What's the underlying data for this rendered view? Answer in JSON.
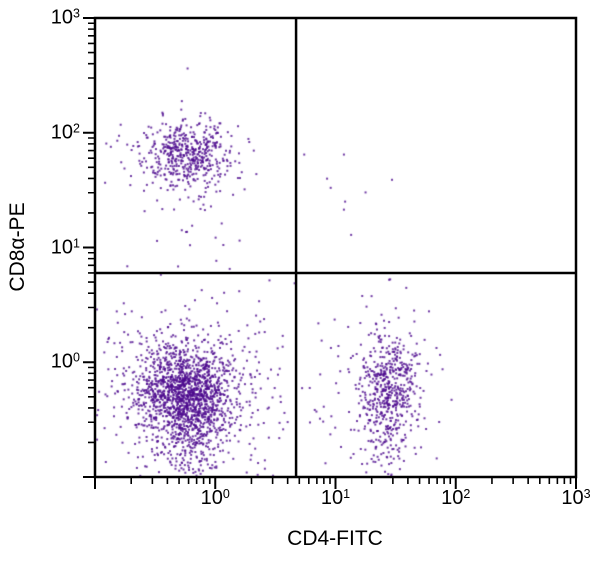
{
  "chart_data": {
    "type": "scatter",
    "subtype": "flow-cytometry-quadrant-dot-plot",
    "xlabel": "CD4-FITC",
    "ylabel": "CD8α-PE",
    "x_scale": "log",
    "y_scale": "log",
    "xlim_log10": [
      -1,
      3
    ],
    "ylim_log10": [
      -1,
      3
    ],
    "x_tick_exponents": [
      0,
      1,
      2,
      3
    ],
    "y_tick_exponents": [
      0,
      1,
      2,
      3
    ],
    "minor_tick_multiples": [
      2,
      3,
      4,
      5,
      6,
      7,
      8,
      9
    ],
    "grid": false,
    "legend": false,
    "quadrant_gate": {
      "x_value": 4.7,
      "y_value": 6.0
    },
    "dot_color": "#4d0b8f",
    "dot_alpha": 0.8,
    "dot_size_px": 2,
    "axis_color": "#000000",
    "background_color": "#ffffff",
    "seed": 1337,
    "clusters": [
      {
        "name": "upper-left-population-core",
        "n": 420,
        "cx": -0.22,
        "cy": 1.8,
        "sx": 0.17,
        "sy": 0.14
      },
      {
        "name": "upper-left-population-halo",
        "n": 100,
        "cx": -0.25,
        "cy": 1.75,
        "sx": 0.33,
        "sy": 0.22
      },
      {
        "name": "upper-left-lower-tail",
        "n": 25,
        "cx": -0.15,
        "cy": 1.35,
        "sx": 0.18,
        "sy": 0.3
      },
      {
        "name": "lower-left-population-core",
        "n": 1400,
        "cx": -0.25,
        "cy": -0.28,
        "sx": 0.2,
        "sy": 0.22
      },
      {
        "name": "lower-left-population-halo",
        "n": 400,
        "cx": -0.22,
        "cy": -0.3,
        "sx": 0.38,
        "sy": 0.42
      },
      {
        "name": "lower-left-debris-tail",
        "n": 120,
        "cx": -0.18,
        "cy": -0.75,
        "sx": 0.12,
        "sy": 0.25
      },
      {
        "name": "lower-right-population-core",
        "n": 420,
        "cx": 1.44,
        "cy": -0.22,
        "sx": 0.12,
        "sy": 0.22
      },
      {
        "name": "lower-right-population-halo",
        "n": 140,
        "cx": 1.42,
        "cy": -0.3,
        "sx": 0.2,
        "sy": 0.4
      },
      {
        "name": "lower-right-debris-tail",
        "n": 60,
        "cx": 1.42,
        "cy": -0.8,
        "sx": 0.1,
        "sy": 0.2
      },
      {
        "name": "inter-cluster-bridge",
        "n": 50,
        "cx": 0.45,
        "cy": -0.35,
        "sx": 0.4,
        "sy": 0.35
      }
    ],
    "extra_points_log10": [
      [
        0.74,
        1.81
      ],
      [
        1.07,
        1.81
      ],
      [
        0.93,
        1.6
      ],
      [
        0.96,
        1.52
      ],
      [
        1.47,
        1.59
      ],
      [
        1.25,
        1.48
      ],
      [
        1.08,
        1.4
      ],
      [
        1.07,
        1.33
      ],
      [
        1.13,
        1.11
      ],
      [
        -0.23,
        2.56
      ]
    ]
  }
}
